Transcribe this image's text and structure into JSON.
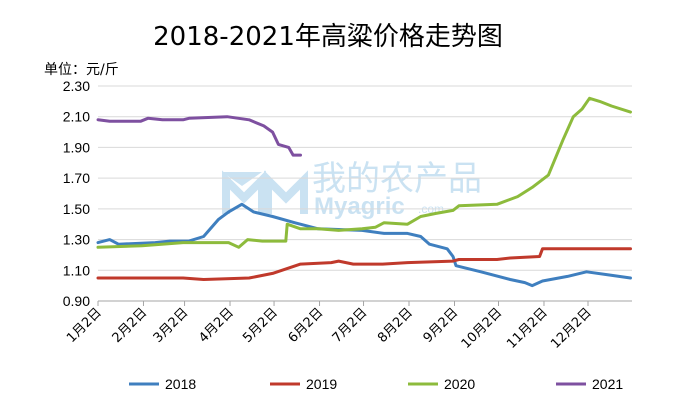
{
  "chart_data": {
    "type": "line",
    "title": "2018-2021年高粱价格走势图",
    "ylabel": "单位：元/斤",
    "xlabel": "",
    "ylim": [
      0.9,
      2.3
    ],
    "yticks": [
      "2.30",
      "2.10",
      "1.90",
      "1.70",
      "1.50",
      "1.30",
      "1.10",
      "0.90"
    ],
    "x_tick_labels": [
      "1月2日",
      "2月2日",
      "3月2日",
      "4月2日",
      "5月2日",
      "6月2日",
      "7月2日",
      "8月2日",
      "9月2日",
      "10月2日",
      "11月2日",
      "12月2日"
    ],
    "grid": "horizontal",
    "legend": "bottom",
    "series": [
      {
        "name": "2018",
        "color": "#3f7fbf",
        "points": [
          [
            "1月2日",
            1.28
          ],
          [
            "1月10日",
            1.3
          ],
          [
            "1月16日",
            1.27
          ],
          [
            "2月10日",
            1.28
          ],
          [
            "2月20日",
            1.29
          ],
          [
            "3月5日",
            1.29
          ],
          [
            "3月15日",
            1.32
          ],
          [
            "3月25日",
            1.43
          ],
          [
            "4月1日",
            1.48
          ],
          [
            "4月10日",
            1.53
          ],
          [
            "4月18日",
            1.48
          ],
          [
            "5月1日",
            1.45
          ],
          [
            "5月16日",
            1.41
          ],
          [
            "6月1日",
            1.37
          ],
          [
            "7月1日",
            1.36
          ],
          [
            "7月16日",
            1.34
          ],
          [
            "8月1日",
            1.34
          ],
          [
            "8月10日",
            1.32
          ],
          [
            "8月16日",
            1.27
          ],
          [
            "8月28日",
            1.24
          ],
          [
            "9月1日",
            1.19
          ],
          [
            "9月3日",
            1.13
          ],
          [
            "9月20日",
            1.09
          ],
          [
            "10月10日",
            1.04
          ],
          [
            "10月20日",
            1.02
          ],
          [
            "10月25日",
            1.0
          ],
          [
            "11月1日",
            1.03
          ],
          [
            "11月18日",
            1.06
          ],
          [
            "12月1日",
            1.09
          ],
          [
            "12月16日",
            1.07
          ],
          [
            "12月31日",
            1.05
          ]
        ]
      },
      {
        "name": "2019",
        "color": "#c0392b",
        "points": [
          [
            "1月2日",
            1.05
          ],
          [
            "3月1日",
            1.05
          ],
          [
            "3月15日",
            1.04
          ],
          [
            "4月15日",
            1.05
          ],
          [
            "5月1日",
            1.08
          ],
          [
            "5月20日",
            1.14
          ],
          [
            "6月10日",
            1.15
          ],
          [
            "6月15日",
            1.16
          ],
          [
            "6月25日",
            1.14
          ],
          [
            "7月15日",
            1.14
          ],
          [
            "8月1日",
            1.15
          ],
          [
            "9月1日",
            1.16
          ],
          [
            "9月5日",
            1.17
          ],
          [
            "10月1日",
            1.17
          ],
          [
            "10月10日",
            1.18
          ],
          [
            "10月30日",
            1.19
          ],
          [
            "11月1日",
            1.24
          ],
          [
            "12月31日",
            1.24
          ]
        ]
      },
      {
        "name": "2020",
        "color": "#8dbb3c",
        "points": [
          [
            "1月2日",
            1.25
          ],
          [
            "2月1日",
            1.26
          ],
          [
            "3月1日",
            1.28
          ],
          [
            "4月1日",
            1.28
          ],
          [
            "4月8日",
            1.25
          ],
          [
            "4月14日",
            1.3
          ],
          [
            "4月24日",
            1.29
          ],
          [
            "5月10日",
            1.29
          ],
          [
            "5月11日",
            1.4
          ],
          [
            "5月20日",
            1.37
          ],
          [
            "6月1日",
            1.37
          ],
          [
            "6月15日",
            1.36
          ],
          [
            "7月1日",
            1.37
          ],
          [
            "7月10日",
            1.38
          ],
          [
            "7月16日",
            1.41
          ],
          [
            "8月1日",
            1.4
          ],
          [
            "8月10日",
            1.45
          ],
          [
            "8月20日",
            1.47
          ],
          [
            "9月1日",
            1.49
          ],
          [
            "9月5日",
            1.52
          ],
          [
            "10月1日",
            1.53
          ],
          [
            "10月15日",
            1.58
          ],
          [
            "10月25日",
            1.64
          ],
          [
            "11月5日",
            1.72
          ],
          [
            "11月15日",
            1.95
          ],
          [
            "11月22日",
            2.1
          ],
          [
            "11月28日",
            2.15
          ],
          [
            "12月3日",
            2.22
          ],
          [
            "12月10日",
            2.2
          ],
          [
            "12月18日",
            2.17
          ],
          [
            "12月31日",
            2.13
          ]
        ]
      },
      {
        "name": "2021",
        "color": "#7e50a0",
        "points": [
          [
            "1月2日",
            2.08
          ],
          [
            "1月10日",
            2.07
          ],
          [
            "1月31日",
            2.07
          ],
          [
            "2月5日",
            2.09
          ],
          [
            "2月15日",
            2.08
          ],
          [
            "3月1日",
            2.08
          ],
          [
            "3月5日",
            2.09
          ],
          [
            "3月31日",
            2.1
          ],
          [
            "4月15日",
            2.08
          ],
          [
            "4月25日",
            2.04
          ],
          [
            "5月1日",
            2.0
          ],
          [
            "5月5日",
            1.92
          ],
          [
            "5月12日",
            1.9
          ],
          [
            "5月15日",
            1.85
          ],
          [
            "5月20日",
            1.85
          ]
        ]
      }
    ]
  },
  "watermark": {
    "cn": "我的农产品",
    "en": "Myagric",
    "com": ".com"
  }
}
